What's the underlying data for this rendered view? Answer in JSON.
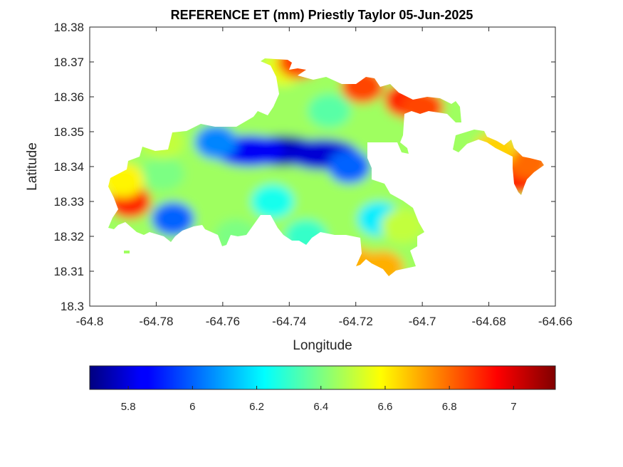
{
  "chart_data": {
    "type": "heatmap",
    "title": "REFERENCE ET (mm) Priestly Taylor 05-Jun-2025",
    "xlabel": "Longitude",
    "ylabel": "Latitude",
    "xlim": [
      -64.8,
      -64.66
    ],
    "ylim": [
      18.3,
      18.38
    ],
    "xticks": [
      "-64.8",
      "-64.78",
      "-64.76",
      "-64.74",
      "-64.72",
      "-64.7",
      "-64.68",
      "-64.66"
    ],
    "yticks": [
      "18.3",
      "18.31",
      "18.32",
      "18.33",
      "18.34",
      "18.35",
      "18.36",
      "18.37",
      "18.38"
    ],
    "colormap": "jet",
    "color_range": [
      5.68,
      7.13
    ],
    "colorbar_ticks": [
      "5.8",
      "6",
      "6.2",
      "6.4",
      "6.6",
      "6.8",
      "7"
    ],
    "colorbar_location": "south",
    "grid": false,
    "regions": [
      {
        "lon": -64.742,
        "lat": 18.3445,
        "value": 5.72
      },
      {
        "lon": -64.73,
        "lat": 18.3435,
        "value": 5.8
      },
      {
        "lon": -64.752,
        "lat": 18.3445,
        "value": 5.85
      },
      {
        "lon": -64.722,
        "lat": 18.34,
        "value": 6.0
      },
      {
        "lon": -64.762,
        "lat": 18.347,
        "value": 6.05
      },
      {
        "lon": -64.775,
        "lat": 18.325,
        "value": 6.0
      },
      {
        "lon": -64.728,
        "lat": 18.356,
        "value": 6.35
      },
      {
        "lon": -64.713,
        "lat": 18.325,
        "value": 6.2
      },
      {
        "lon": -64.745,
        "lat": 18.33,
        "value": 6.25
      },
      {
        "lon": -64.778,
        "lat": 18.338,
        "value": 6.4
      },
      {
        "lon": -64.788,
        "lat": 18.33,
        "value": 6.9
      },
      {
        "lon": -64.79,
        "lat": 18.336,
        "value": 6.6
      },
      {
        "lon": -64.742,
        "lat": 18.368,
        "value": 6.55
      },
      {
        "lon": -64.737,
        "lat": 18.37,
        "value": 6.85
      },
      {
        "lon": -64.718,
        "lat": 18.363,
        "value": 6.85
      },
      {
        "lon": -64.705,
        "lat": 18.359,
        "value": 6.9
      },
      {
        "lon": -64.7,
        "lat": 18.357,
        "value": 6.85
      },
      {
        "lon": -64.671,
        "lat": 18.337,
        "value": 6.95
      },
      {
        "lon": -64.668,
        "lat": 18.341,
        "value": 6.8
      },
      {
        "lon": -64.678,
        "lat": 18.345,
        "value": 6.65
      },
      {
        "lon": -64.72,
        "lat": 18.312,
        "value": 6.7
      },
      {
        "lon": -64.712,
        "lat": 18.311,
        "value": 6.7
      },
      {
        "lon": -64.706,
        "lat": 18.323,
        "value": 6.5
      },
      {
        "lon": -64.756,
        "lat": 18.32,
        "value": 6.4
      },
      {
        "lon": -64.778,
        "lat": 18.347,
        "value": 6.5
      },
      {
        "lon": -64.735,
        "lat": 18.32,
        "value": 6.3
      }
    ]
  }
}
